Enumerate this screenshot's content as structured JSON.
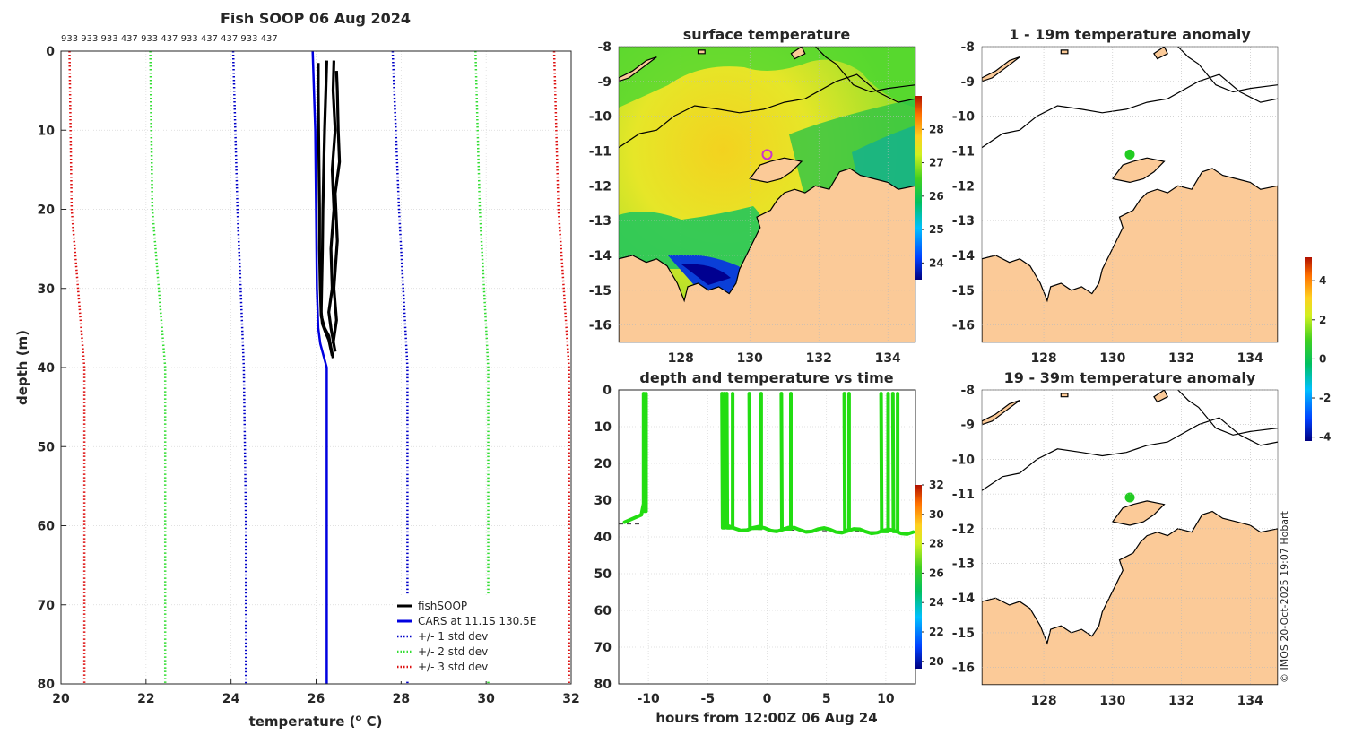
{
  "colors": {
    "land": "#fbca98",
    "coast": "#000000",
    "fish": "#000000",
    "cars": "#0000e0",
    "std1": "#0000c8",
    "std2": "#33dd33",
    "std3": "#dd1111",
    "track": "#22dd11",
    "marker": "#cc33cc"
  },
  "chart_data": [
    {
      "id": "profile",
      "type": "line",
      "title": "Fish SOOP 06 Aug 2024",
      "subtitle": "933 933 933 437 933 437 933 437 437 933 437",
      "xlabel": "temperature (",
      "xlabel_sup": "o",
      "xlabel_end": " C)",
      "ylabel": "depth (m)",
      "xlim": [
        20,
        32
      ],
      "ylim": [
        0,
        80
      ],
      "xticks": [
        "20",
        "22",
        "24",
        "26",
        "28",
        "30",
        "32"
      ],
      "yticks": [
        "0",
        "10",
        "20",
        "30",
        "40",
        "50",
        "60",
        "70",
        "80"
      ],
      "legend": [
        "fishSOOP",
        "CARS at 11.1S 130.5E",
        "+/- 1 std dev",
        "+/- 2 std dev",
        "+/- 3 std dev"
      ],
      "series": [
        {
          "name": "fishSOOP A",
          "x": [
            26.05,
            26.05,
            26.06,
            26.07,
            26.08,
            26.08,
            26.1,
            26.12,
            26.2,
            26.3,
            26.35,
            26.4
          ],
          "y": [
            1.5,
            5,
            10,
            15,
            20,
            25,
            30,
            33.5,
            35,
            36,
            37.5,
            38.8
          ]
        },
        {
          "name": "fishSOOP B",
          "x": [
            26.25,
            26.23,
            26.2,
            26.18,
            26.16,
            26.15,
            26.13,
            26.12,
            26.15,
            26.22,
            26.3,
            26.38
          ],
          "y": [
            1.2,
            5,
            10,
            15,
            20,
            25,
            30,
            33,
            34.5,
            35.5,
            36.5,
            38.5
          ]
        },
        {
          "name": "fishSOOP C",
          "x": [
            26.42,
            26.4,
            26.45,
            26.38,
            26.42,
            26.35,
            26.38,
            26.3,
            26.35,
            26.45
          ],
          "y": [
            1.2,
            5,
            10,
            15,
            20,
            25,
            30,
            33,
            35,
            38
          ]
        },
        {
          "name": "fishSOOP D",
          "x": [
            26.48,
            26.5,
            26.52,
            26.55,
            26.45,
            26.5,
            26.42,
            26.48,
            26.4
          ],
          "y": [
            2.5,
            5,
            10,
            14,
            18,
            24,
            30,
            34,
            37
          ]
        },
        {
          "name": "CARS",
          "x": [
            25.92,
            25.98,
            26.0,
            26.02,
            26.05,
            26.1,
            26.25,
            26.25,
            26.25
          ],
          "y": [
            0,
            10,
            20,
            30,
            35,
            37,
            40,
            60,
            80
          ]
        },
        {
          "name": "-1 std",
          "x": [
            24.05,
            24.15,
            24.3,
            24.35,
            24.35
          ],
          "y": [
            0,
            20,
            40,
            60,
            80
          ]
        },
        {
          "name": "+1 std",
          "x": [
            27.8,
            27.95,
            28.15,
            28.15,
            28.15
          ],
          "y": [
            0,
            20,
            40,
            60,
            80
          ]
        },
        {
          "name": "-2 std",
          "x": [
            22.1,
            22.15,
            22.45,
            22.45,
            22.45
          ],
          "y": [
            0,
            20,
            40,
            60,
            80
          ]
        },
        {
          "name": "+2 std",
          "x": [
            29.75,
            29.85,
            30.05,
            30.05,
            30.05
          ],
          "y": [
            0,
            20,
            40,
            60,
            80
          ]
        },
        {
          "name": "-3 std",
          "x": [
            20.2,
            20.25,
            20.55,
            20.55,
            20.55
          ],
          "y": [
            0,
            20,
            40,
            60,
            80
          ]
        },
        {
          "name": "+3 std",
          "x": [
            31.6,
            31.7,
            31.95,
            31.95,
            31.95
          ],
          "y": [
            0,
            20,
            40,
            60,
            80
          ]
        }
      ]
    },
    {
      "id": "sst",
      "type": "heatmap",
      "title": "surface temperature",
      "xlim": [
        126.2,
        134.8
      ],
      "ylim": [
        -16.5,
        -8
      ],
      "xticks": [
        "128",
        "130",
        "132",
        "134"
      ],
      "yticks": [
        "-8",
        "-9",
        "-10",
        "-11",
        "-12",
        "-13",
        "-14",
        "-15",
        "-16"
      ],
      "colorbar": {
        "range": [
          23.5,
          29
        ],
        "ticks": [
          "24",
          "25",
          "26",
          "27",
          "28"
        ]
      },
      "marker": {
        "lon": 130.5,
        "lat": -11.1
      }
    },
    {
      "id": "anom1",
      "type": "heatmap",
      "title": "1 - 19m temperature anomaly",
      "xlim": [
        126.2,
        134.8
      ],
      "ylim": [
        -16.5,
        -8
      ],
      "xticks": [
        "128",
        "130",
        "132",
        "134"
      ],
      "yticks": [
        "-8",
        "-9",
        "-10",
        "-11",
        "-12",
        "-13",
        "-14",
        "-15",
        "-16"
      ],
      "point": {
        "lon": 130.5,
        "lat": -11.1,
        "value": 0.2
      }
    },
    {
      "id": "anom2",
      "type": "heatmap",
      "title": "19 - 39m temperature anomaly",
      "xlim": [
        126.2,
        134.8
      ],
      "ylim": [
        -16.5,
        -8
      ],
      "xticks": [
        "128",
        "130",
        "132",
        "134"
      ],
      "yticks": [
        "-8",
        "-9",
        "-10",
        "-11",
        "-12",
        "-13",
        "-14",
        "-15",
        "-16"
      ],
      "point": {
        "lon": 130.5,
        "lat": -11.1,
        "value": 0.2
      },
      "colorbar": {
        "range": [
          -4.2,
          5.2
        ],
        "ticks": [
          "4",
          "2",
          "0",
          "-2",
          "-4"
        ]
      }
    },
    {
      "id": "tdepth",
      "type": "scatter",
      "title": "depth and temperature vs time",
      "xlabel": "hours from 12:00Z 06 Aug 24",
      "xlim": [
        -12.5,
        12.5
      ],
      "ylim": [
        0,
        80
      ],
      "xticks": [
        "-10",
        "-5",
        "0",
        "5",
        "10"
      ],
      "yticks": [
        "0",
        "10",
        "20",
        "30",
        "40",
        "50",
        "60",
        "70",
        "80"
      ],
      "colorbar": {
        "range": [
          19.5,
          32
        ],
        "ticks": [
          "20",
          "22",
          "24",
          "26",
          "28",
          "30",
          "32"
        ]
      },
      "bottom_depth": [
        {
          "x": -12.5,
          "y": 36.5
        },
        {
          "x": -10.5,
          "y": 36.5
        },
        {
          "x": -3.5,
          "y": 37.8
        },
        {
          "x": 12.5,
          "y": 38.8
        }
      ],
      "dives": [
        {
          "x_down": -10.4,
          "x_up": -10.2,
          "bottom": 33,
          "x_start": -12.0
        },
        {
          "x_down": -3.8,
          "x_up": -3.6,
          "bottom": 37.5
        },
        {
          "x_down": -3.4,
          "x_up": -2.9,
          "bottom": 37.5
        },
        {
          "x_down": -1.5,
          "x_up": -0.5,
          "bottom": 37.6
        },
        {
          "x_down": 1.2,
          "x_up": 2.0,
          "bottom": 37.8
        },
        {
          "x_down": 6.5,
          "x_up": 6.9,
          "bottom": 38.2
        },
        {
          "x_down": 9.6,
          "x_up": 10.2,
          "bottom": 38.5
        },
        {
          "x_down": 10.6,
          "x_up": 11.0,
          "bottom": 38.5
        }
      ],
      "bottom_end": 12.4
    }
  ],
  "credit": "© IMOS 20-Oct-2025 19:07 Hobart"
}
